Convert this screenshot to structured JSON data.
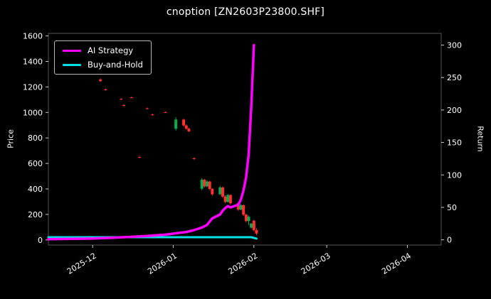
{
  "chart_data": {
    "type": "candlestick+line",
    "title": "cnoption [ZN2603P23800.SHF]",
    "grid": false,
    "background_color": "#000000",
    "frame_color": "#555555",
    "tick_color": "#cccccc",
    "text_color": "#ffffff",
    "left_axis": {
      "label": "Price",
      "ticks": [
        0,
        200,
        400,
        600,
        800,
        1000,
        1200,
        1400,
        1600
      ],
      "min": -40,
      "max": 1620
    },
    "right_axis": {
      "label": "Return",
      "ticks": [
        0,
        50,
        100,
        150,
        200,
        250,
        300
      ],
      "min": -8,
      "max": 318
    },
    "x_axis": {
      "start": "2025-11-14",
      "end": "2026-04-14",
      "tick_dates": [
        "2025-12-01",
        "2026-01-01",
        "2026-02-01",
        "2026-03-01",
        "2026-04-01"
      ],
      "tick_labels": [
        "2025-12",
        "2026-01",
        "2026-02",
        "2026-03",
        "2026-04"
      ]
    },
    "legend": [
      {
        "label": "AI Strategy",
        "color": "#ff00ff"
      },
      {
        "label": "Buy-and-Hold",
        "color": "#00e0e6"
      }
    ],
    "series": [
      {
        "name": "Buy-and-Hold",
        "axis": "right",
        "color": "#00e0e6",
        "width": 3,
        "points": [
          [
            "2025-11-14",
            4
          ],
          [
            "2025-12-15",
            4
          ],
          [
            "2026-01-15",
            4
          ],
          [
            "2026-01-31",
            4
          ],
          [
            "2026-02-02",
            2
          ]
        ]
      },
      {
        "name": "AI Strategy",
        "axis": "right",
        "color": "#ff00ff",
        "width": 3.5,
        "points": [
          [
            "2025-11-14",
            1
          ],
          [
            "2025-11-24",
            1.5
          ],
          [
            "2025-12-01",
            2
          ],
          [
            "2025-12-08",
            3
          ],
          [
            "2025-12-15",
            4.5
          ],
          [
            "2025-12-22",
            6
          ],
          [
            "2025-12-29",
            8
          ],
          [
            "2026-01-02",
            10
          ],
          [
            "2026-01-06",
            12
          ],
          [
            "2026-01-09",
            15
          ],
          [
            "2026-01-12",
            19
          ],
          [
            "2026-01-14",
            23
          ],
          [
            "2026-01-15",
            28
          ],
          [
            "2026-01-16",
            33
          ],
          [
            "2026-01-19",
            39
          ],
          [
            "2026-01-20",
            45
          ],
          [
            "2026-01-21",
            49
          ],
          [
            "2026-01-22",
            52
          ],
          [
            "2026-01-23",
            50
          ],
          [
            "2026-01-26",
            54
          ],
          [
            "2026-01-27",
            62
          ],
          [
            "2026-01-28",
            76
          ],
          [
            "2026-01-29",
            96
          ],
          [
            "2026-01-30",
            132
          ],
          [
            "2026-01-31",
            205
          ],
          [
            "2026-02-01",
            300
          ]
        ]
      }
    ],
    "candles": {
      "up_color": "#00b050",
      "down_color": "#ff3030",
      "columns": [
        "date",
        "open",
        "high",
        "low",
        "close"
      ],
      "data": [
        [
          "2025-12-04",
          1258,
          1268,
          1240,
          1246
        ],
        [
          "2025-12-06",
          1180,
          1188,
          1172,
          1176
        ],
        [
          "2025-12-12",
          1106,
          1112,
          1098,
          1101
        ],
        [
          "2025-12-13",
          1058,
          1064,
          1048,
          1051
        ],
        [
          "2025-12-16",
          1118,
          1124,
          1112,
          1115
        ],
        [
          "2025-12-19",
          650,
          655,
          642,
          645
        ],
        [
          "2025-12-22",
          1032,
          1038,
          1024,
          1027
        ],
        [
          "2025-12-24",
          984,
          990,
          976,
          979
        ],
        [
          "2025-12-29",
          1002,
          1008,
          996,
          998
        ],
        [
          "2026-01-02",
          872,
          962,
          858,
          944
        ],
        [
          "2026-01-05",
          944,
          950,
          888,
          898
        ],
        [
          "2026-01-06",
          898,
          906,
          866,
          872
        ],
        [
          "2026-01-07",
          872,
          880,
          846,
          852
        ],
        [
          "2026-01-09",
          640,
          648,
          630,
          634
        ],
        [
          "2026-01-12",
          402,
          484,
          392,
          472
        ],
        [
          "2026-01-13",
          472,
          478,
          412,
          420
        ],
        [
          "2026-01-14",
          420,
          468,
          414,
          458
        ],
        [
          "2026-01-15",
          458,
          464,
          392,
          400
        ],
        [
          "2026-01-16",
          400,
          406,
          348,
          358
        ],
        [
          "2026-01-19",
          358,
          422,
          352,
          412
        ],
        [
          "2026-01-20",
          412,
          418,
          330,
          340
        ],
        [
          "2026-01-21",
          340,
          350,
          288,
          298
        ],
        [
          "2026-01-22",
          298,
          360,
          292,
          352
        ],
        [
          "2026-01-23",
          352,
          358,
          278,
          288
        ],
        [
          "2026-01-26",
          288,
          296,
          228,
          238
        ],
        [
          "2026-01-27",
          238,
          282,
          232,
          272
        ],
        [
          "2026-01-28",
          272,
          278,
          188,
          198
        ],
        [
          "2026-01-29",
          198,
          206,
          138,
          148
        ],
        [
          "2026-01-30",
          148,
          192,
          118,
          182
        ],
        [
          "2026-01-31",
          96,
          134,
          90,
          128
        ],
        [
          "2026-02-01",
          150,
          158,
          66,
          78
        ],
        [
          "2026-02-02",
          78,
          92,
          38,
          50
        ]
      ]
    }
  }
}
